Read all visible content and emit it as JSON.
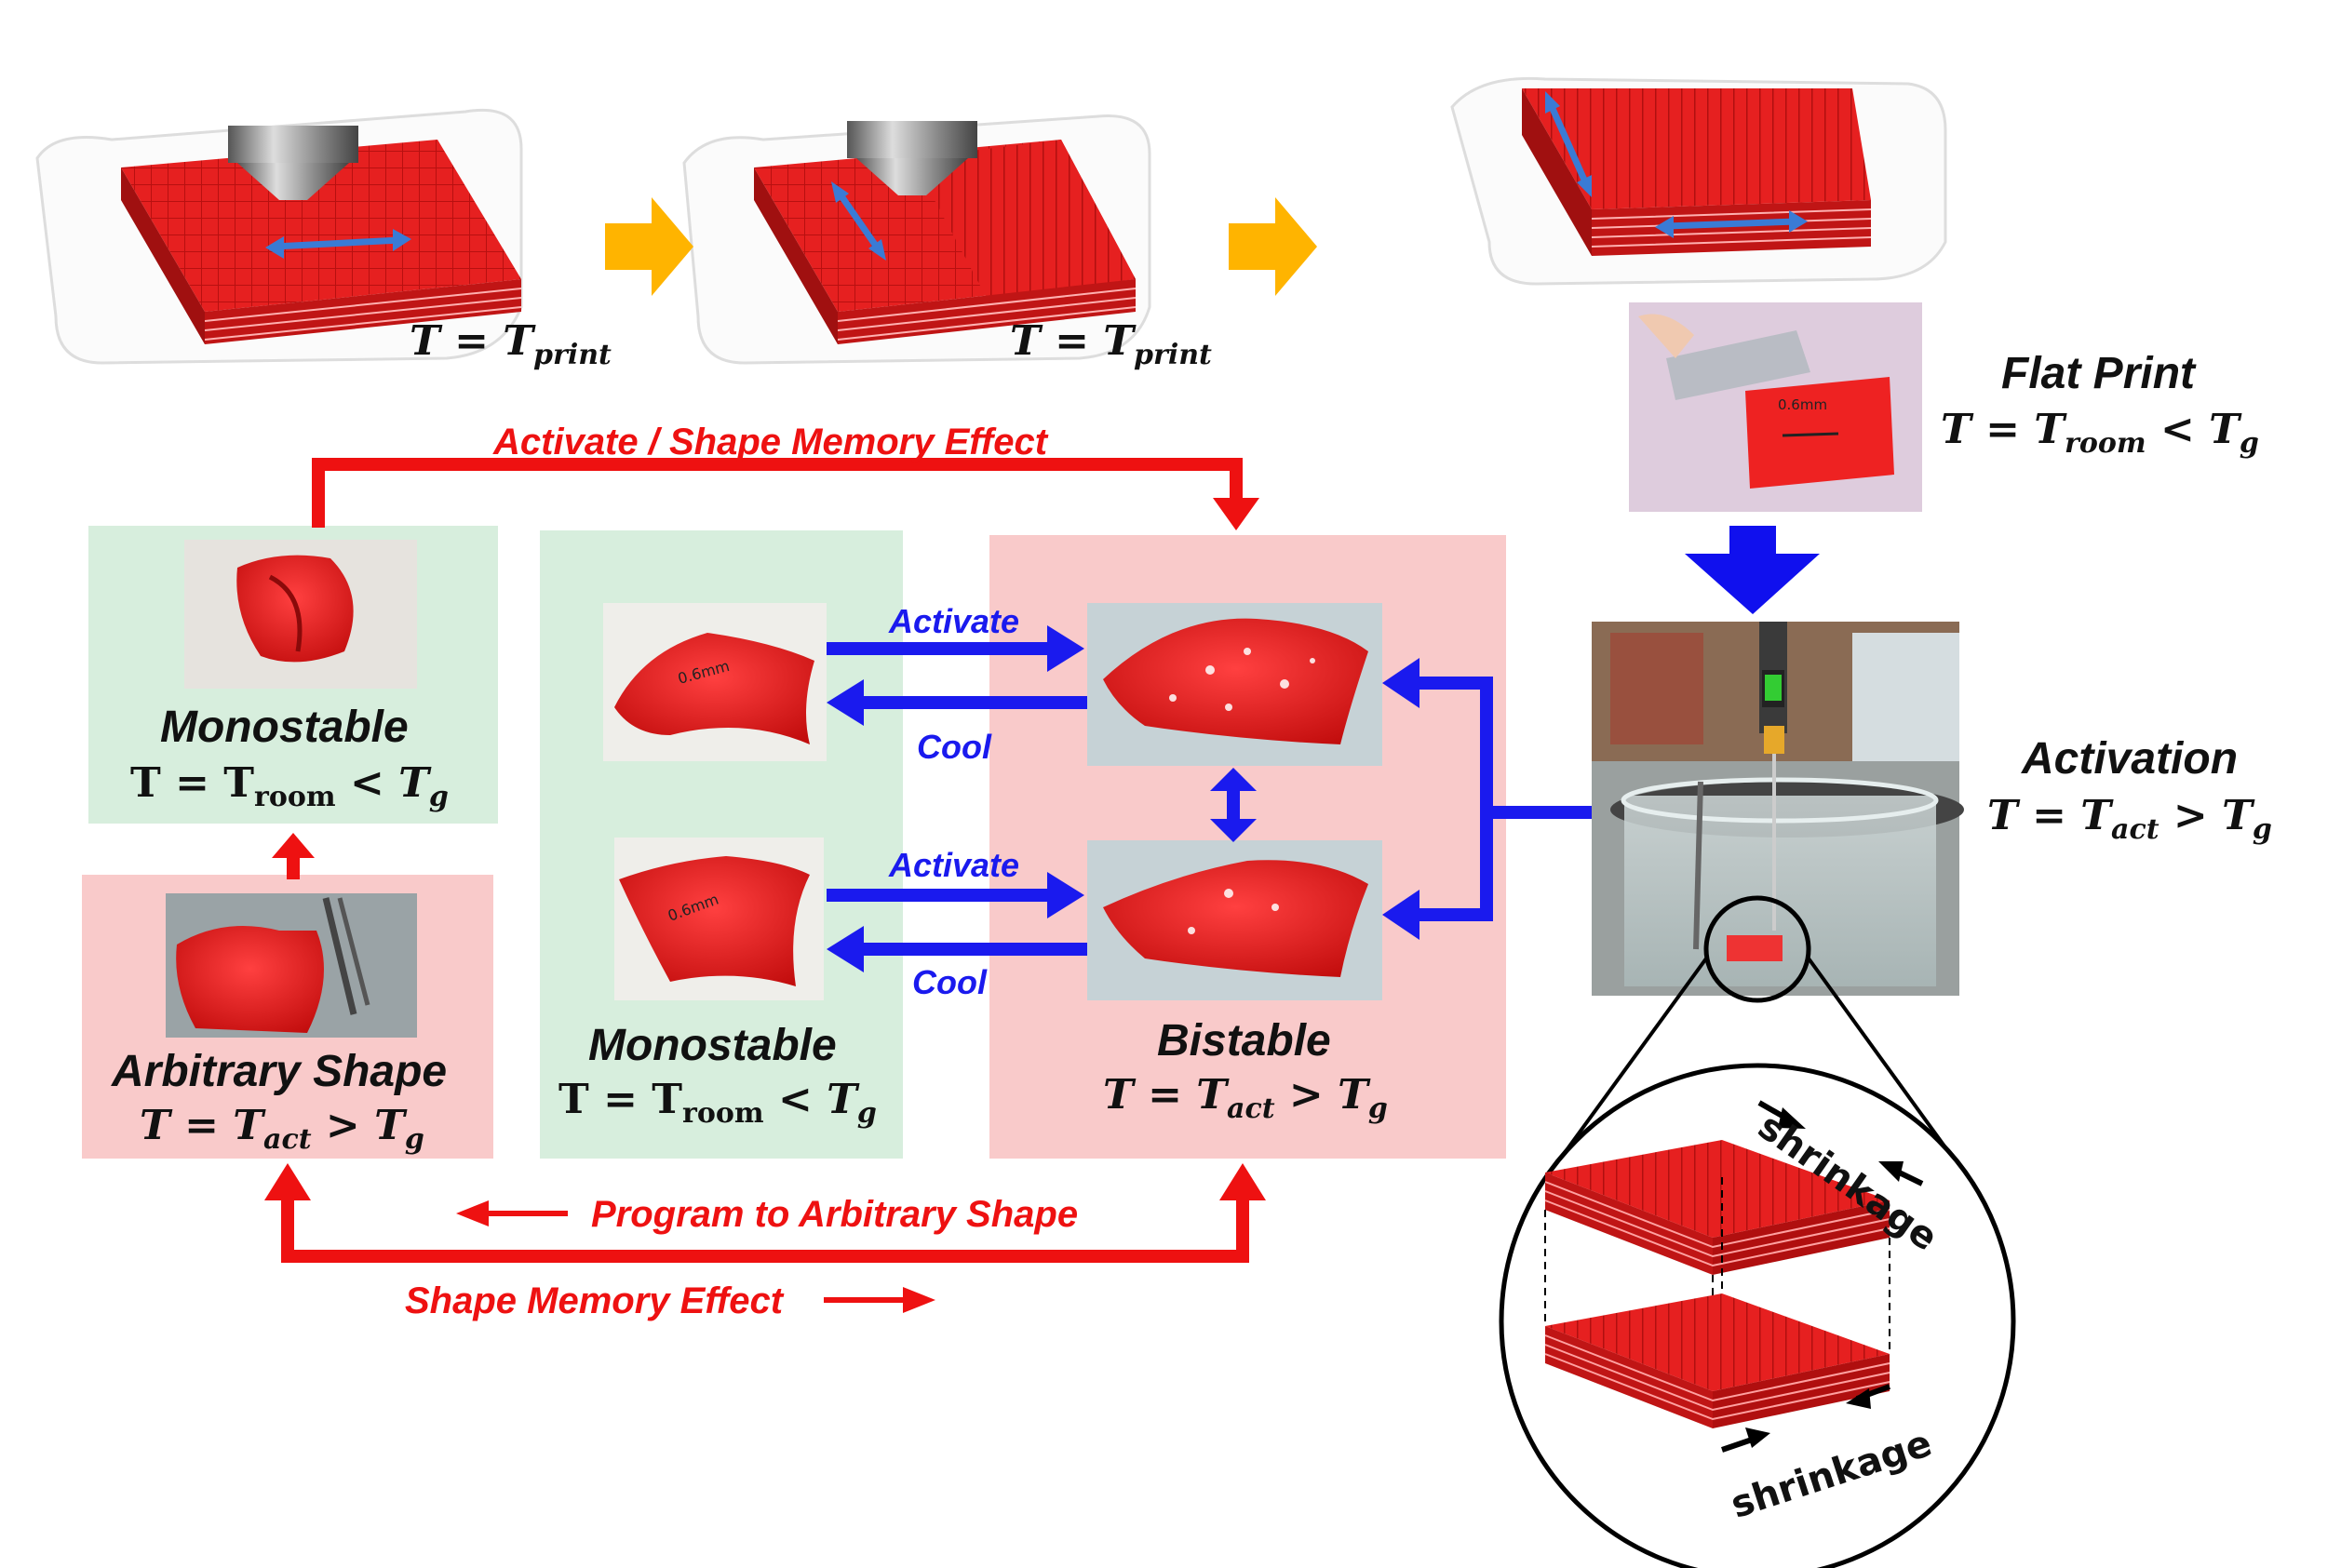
{
  "printing": {
    "step1_eq": {
      "lhs": "T",
      "op": "=",
      "var": "T",
      "sub": "print"
    },
    "step2_eq": {
      "lhs": "T",
      "op": "=",
      "var": "T",
      "sub": "print"
    }
  },
  "flat_print": {
    "title": "Flat Print",
    "eq": {
      "lhs": "T",
      "op": "=",
      "var": "T",
      "sub": "room",
      "rel": "<",
      "rhs": "T",
      "rhs_sub": "g"
    }
  },
  "activation": {
    "title": "Activation",
    "eq": {
      "lhs": "T",
      "op": "=",
      "var": "T",
      "sub": "act",
      "rel": ">",
      "rhs": "T",
      "rhs_sub": "g"
    }
  },
  "monostable_top": {
    "title": "Monostable",
    "eq": {
      "lhs": "T",
      "op": "=",
      "var": "T",
      "sub": "room",
      "rel": "<",
      "rhs": "T",
      "rhs_sub": "g"
    }
  },
  "arbitrary": {
    "title": "Arbitrary Shape",
    "eq": {
      "lhs": "T",
      "op": "=",
      "var": "T",
      "sub": "act",
      "rel": ">",
      "rhs": "T",
      "rhs_sub": "g"
    }
  },
  "monostable_mid": {
    "title": "Monostable",
    "eq": {
      "lhs": "T",
      "op": "=",
      "var": "T",
      "sub": "room",
      "rel": "<",
      "rhs": "T",
      "rhs_sub": "g"
    }
  },
  "bistable": {
    "title": "Bistable",
    "eq": {
      "lhs": "T",
      "op": "=",
      "var": "T",
      "sub": "act",
      "rel": ">",
      "rhs": "T",
      "rhs_sub": "g"
    }
  },
  "arrows": {
    "activate_sme": "Activate / Shape Memory Effect",
    "activate_1": "Activate",
    "cool_1": "Cool",
    "activate_2": "Activate",
    "cool_2": "Cool",
    "program": "Program to Arbitrary Shape",
    "sme": "Shape Memory Effect"
  },
  "zoom": {
    "shrink_top": "shrinkage",
    "shrink_bottom": "shrinkage"
  },
  "colors": {
    "red_arrow": "#ee1111",
    "blue_arrow": "#1a1aee",
    "orange_arrow": "#ffb400",
    "green_panel": "#d7eedd",
    "pink_panel": "#f9caca",
    "print_red": "#e81e1e"
  }
}
